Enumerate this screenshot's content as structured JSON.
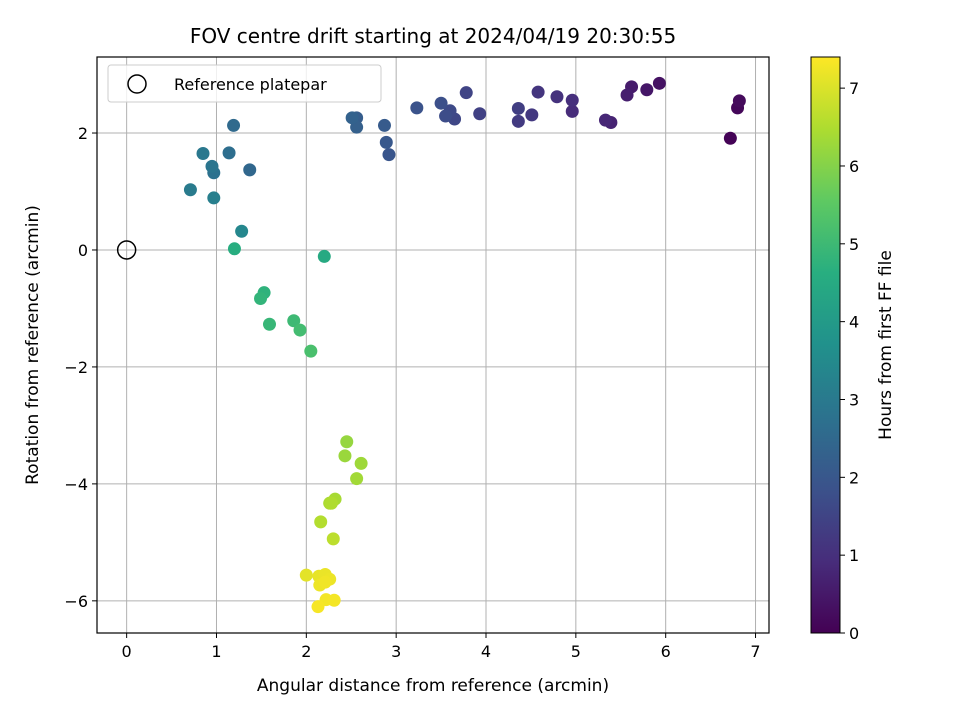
{
  "chart_data": {
    "type": "scatter",
    "title": "FOV centre drift starting at 2024/04/19 20:30:55",
    "xlabel": "Angular distance from reference (arcmin)",
    "ylabel": "Rotation from reference (arcmin)",
    "xlim": [
      -0.33,
      7.15
    ],
    "ylim": [
      -6.55,
      3.3
    ],
    "xticks": [
      0,
      1,
      2,
      3,
      4,
      5,
      6,
      7
    ],
    "xtick_labels": [
      "0",
      "1",
      "2",
      "3",
      "4",
      "5",
      "6",
      "7"
    ],
    "yticks": [
      2,
      0,
      -2,
      -4,
      -6
    ],
    "ytick_labels": [
      "2",
      "0",
      "−2",
      "−4",
      "−6"
    ],
    "grid": true,
    "colorbar": {
      "label": "Hours from first FF file",
      "colormap": "viridis",
      "range": [
        0,
        7.4
      ],
      "ticks": [
        0,
        1,
        2,
        3,
        4,
        5,
        6,
        7
      ],
      "tick_labels": [
        "0",
        "1",
        "2",
        "3",
        "4",
        "5",
        "6",
        "7"
      ]
    },
    "reference": {
      "name": "Reference platepar",
      "x": 0,
      "y": 0
    },
    "legend": {
      "placement": "top-left",
      "entries": [
        "Reference platepar"
      ]
    },
    "points": [
      {
        "x": 6.72,
        "y": 1.91,
        "c": 0.05
      },
      {
        "x": 6.8,
        "y": 2.43,
        "c": 0.12
      },
      {
        "x": 6.82,
        "y": 2.55,
        "c": 0.2
      },
      {
        "x": 5.93,
        "y": 2.85,
        "c": 0.35
      },
      {
        "x": 5.79,
        "y": 2.74,
        "c": 0.45
      },
      {
        "x": 5.62,
        "y": 2.79,
        "c": 0.55
      },
      {
        "x": 5.57,
        "y": 2.65,
        "c": 0.62
      },
      {
        "x": 5.39,
        "y": 2.18,
        "c": 0.72
      },
      {
        "x": 5.33,
        "y": 2.22,
        "c": 0.8
      },
      {
        "x": 4.96,
        "y": 2.37,
        "c": 0.9
      },
      {
        "x": 4.96,
        "y": 2.56,
        "c": 0.97
      },
      {
        "x": 4.79,
        "y": 2.62,
        "c": 1.05
      },
      {
        "x": 4.58,
        "y": 2.7,
        "c": 1.12
      },
      {
        "x": 4.51,
        "y": 2.31,
        "c": 1.2
      },
      {
        "x": 4.36,
        "y": 2.2,
        "c": 1.27
      },
      {
        "x": 4.36,
        "y": 2.42,
        "c": 1.35
      },
      {
        "x": 3.93,
        "y": 2.33,
        "c": 1.42
      },
      {
        "x": 3.78,
        "y": 2.69,
        "c": 1.5
      },
      {
        "x": 3.65,
        "y": 2.24,
        "c": 1.57
      },
      {
        "x": 3.6,
        "y": 2.38,
        "c": 1.65
      },
      {
        "x": 3.55,
        "y": 2.29,
        "c": 1.72
      },
      {
        "x": 3.5,
        "y": 2.51,
        "c": 1.8
      },
      {
        "x": 3.23,
        "y": 2.43,
        "c": 1.87
      },
      {
        "x": 2.92,
        "y": 1.63,
        "c": 1.95
      },
      {
        "x": 2.89,
        "y": 1.84,
        "c": 2.02
      },
      {
        "x": 2.87,
        "y": 2.13,
        "c": 2.1
      },
      {
        "x": 2.56,
        "y": 2.26,
        "c": 2.17
      },
      {
        "x": 2.56,
        "y": 2.1,
        "c": 2.25
      },
      {
        "x": 2.51,
        "y": 2.26,
        "c": 2.32
      },
      {
        "x": 1.37,
        "y": 1.37,
        "c": 2.45
      },
      {
        "x": 1.19,
        "y": 2.13,
        "c": 2.55
      },
      {
        "x": 1.14,
        "y": 1.66,
        "c": 2.65
      },
      {
        "x": 0.97,
        "y": 1.32,
        "c": 2.75
      },
      {
        "x": 0.95,
        "y": 1.43,
        "c": 2.85
      },
      {
        "x": 0.85,
        "y": 1.65,
        "c": 2.95
      },
      {
        "x": 0.71,
        "y": 1.03,
        "c": 3.05
      },
      {
        "x": 0.97,
        "y": 0.89,
        "c": 3.15
      },
      {
        "x": 1.28,
        "y": 0.32,
        "c": 3.4
      },
      {
        "x": 2.2,
        "y": -0.11,
        "c": 4.45
      },
      {
        "x": 1.2,
        "y": 0.02,
        "c": 4.6
      },
      {
        "x": 1.53,
        "y": -0.73,
        "c": 4.75
      },
      {
        "x": 1.49,
        "y": -0.83,
        "c": 4.82
      },
      {
        "x": 1.59,
        "y": -1.27,
        "c": 4.9
      },
      {
        "x": 1.86,
        "y": -1.21,
        "c": 5.0
      },
      {
        "x": 1.93,
        "y": -1.37,
        "c": 5.1
      },
      {
        "x": 2.05,
        "y": -1.73,
        "c": 5.2
      },
      {
        "x": 2.45,
        "y": -3.28,
        "c": 6.2
      },
      {
        "x": 2.43,
        "y": -3.52,
        "c": 6.25
      },
      {
        "x": 2.61,
        "y": -3.65,
        "c": 6.3
      },
      {
        "x": 2.56,
        "y": -3.91,
        "c": 6.35
      },
      {
        "x": 2.32,
        "y": -4.26,
        "c": 6.4
      },
      {
        "x": 2.26,
        "y": -4.33,
        "c": 6.45
      },
      {
        "x": 2.28,
        "y": -4.33,
        "c": 6.5
      },
      {
        "x": 2.16,
        "y": -4.65,
        "c": 6.55
      },
      {
        "x": 2.3,
        "y": -4.94,
        "c": 6.65
      },
      {
        "x": 2.0,
        "y": -5.56,
        "c": 7.1
      },
      {
        "x": 2.14,
        "y": -5.58,
        "c": 7.15
      },
      {
        "x": 2.21,
        "y": -5.55,
        "c": 7.18
      },
      {
        "x": 2.26,
        "y": -5.63,
        "c": 7.2
      },
      {
        "x": 2.15,
        "y": -5.73,
        "c": 7.22
      },
      {
        "x": 2.21,
        "y": -5.68,
        "c": 7.25
      },
      {
        "x": 2.22,
        "y": -5.98,
        "c": 7.28
      },
      {
        "x": 2.31,
        "y": -5.99,
        "c": 7.3
      },
      {
        "x": 2.13,
        "y": -6.1,
        "c": 7.32
      }
    ]
  }
}
